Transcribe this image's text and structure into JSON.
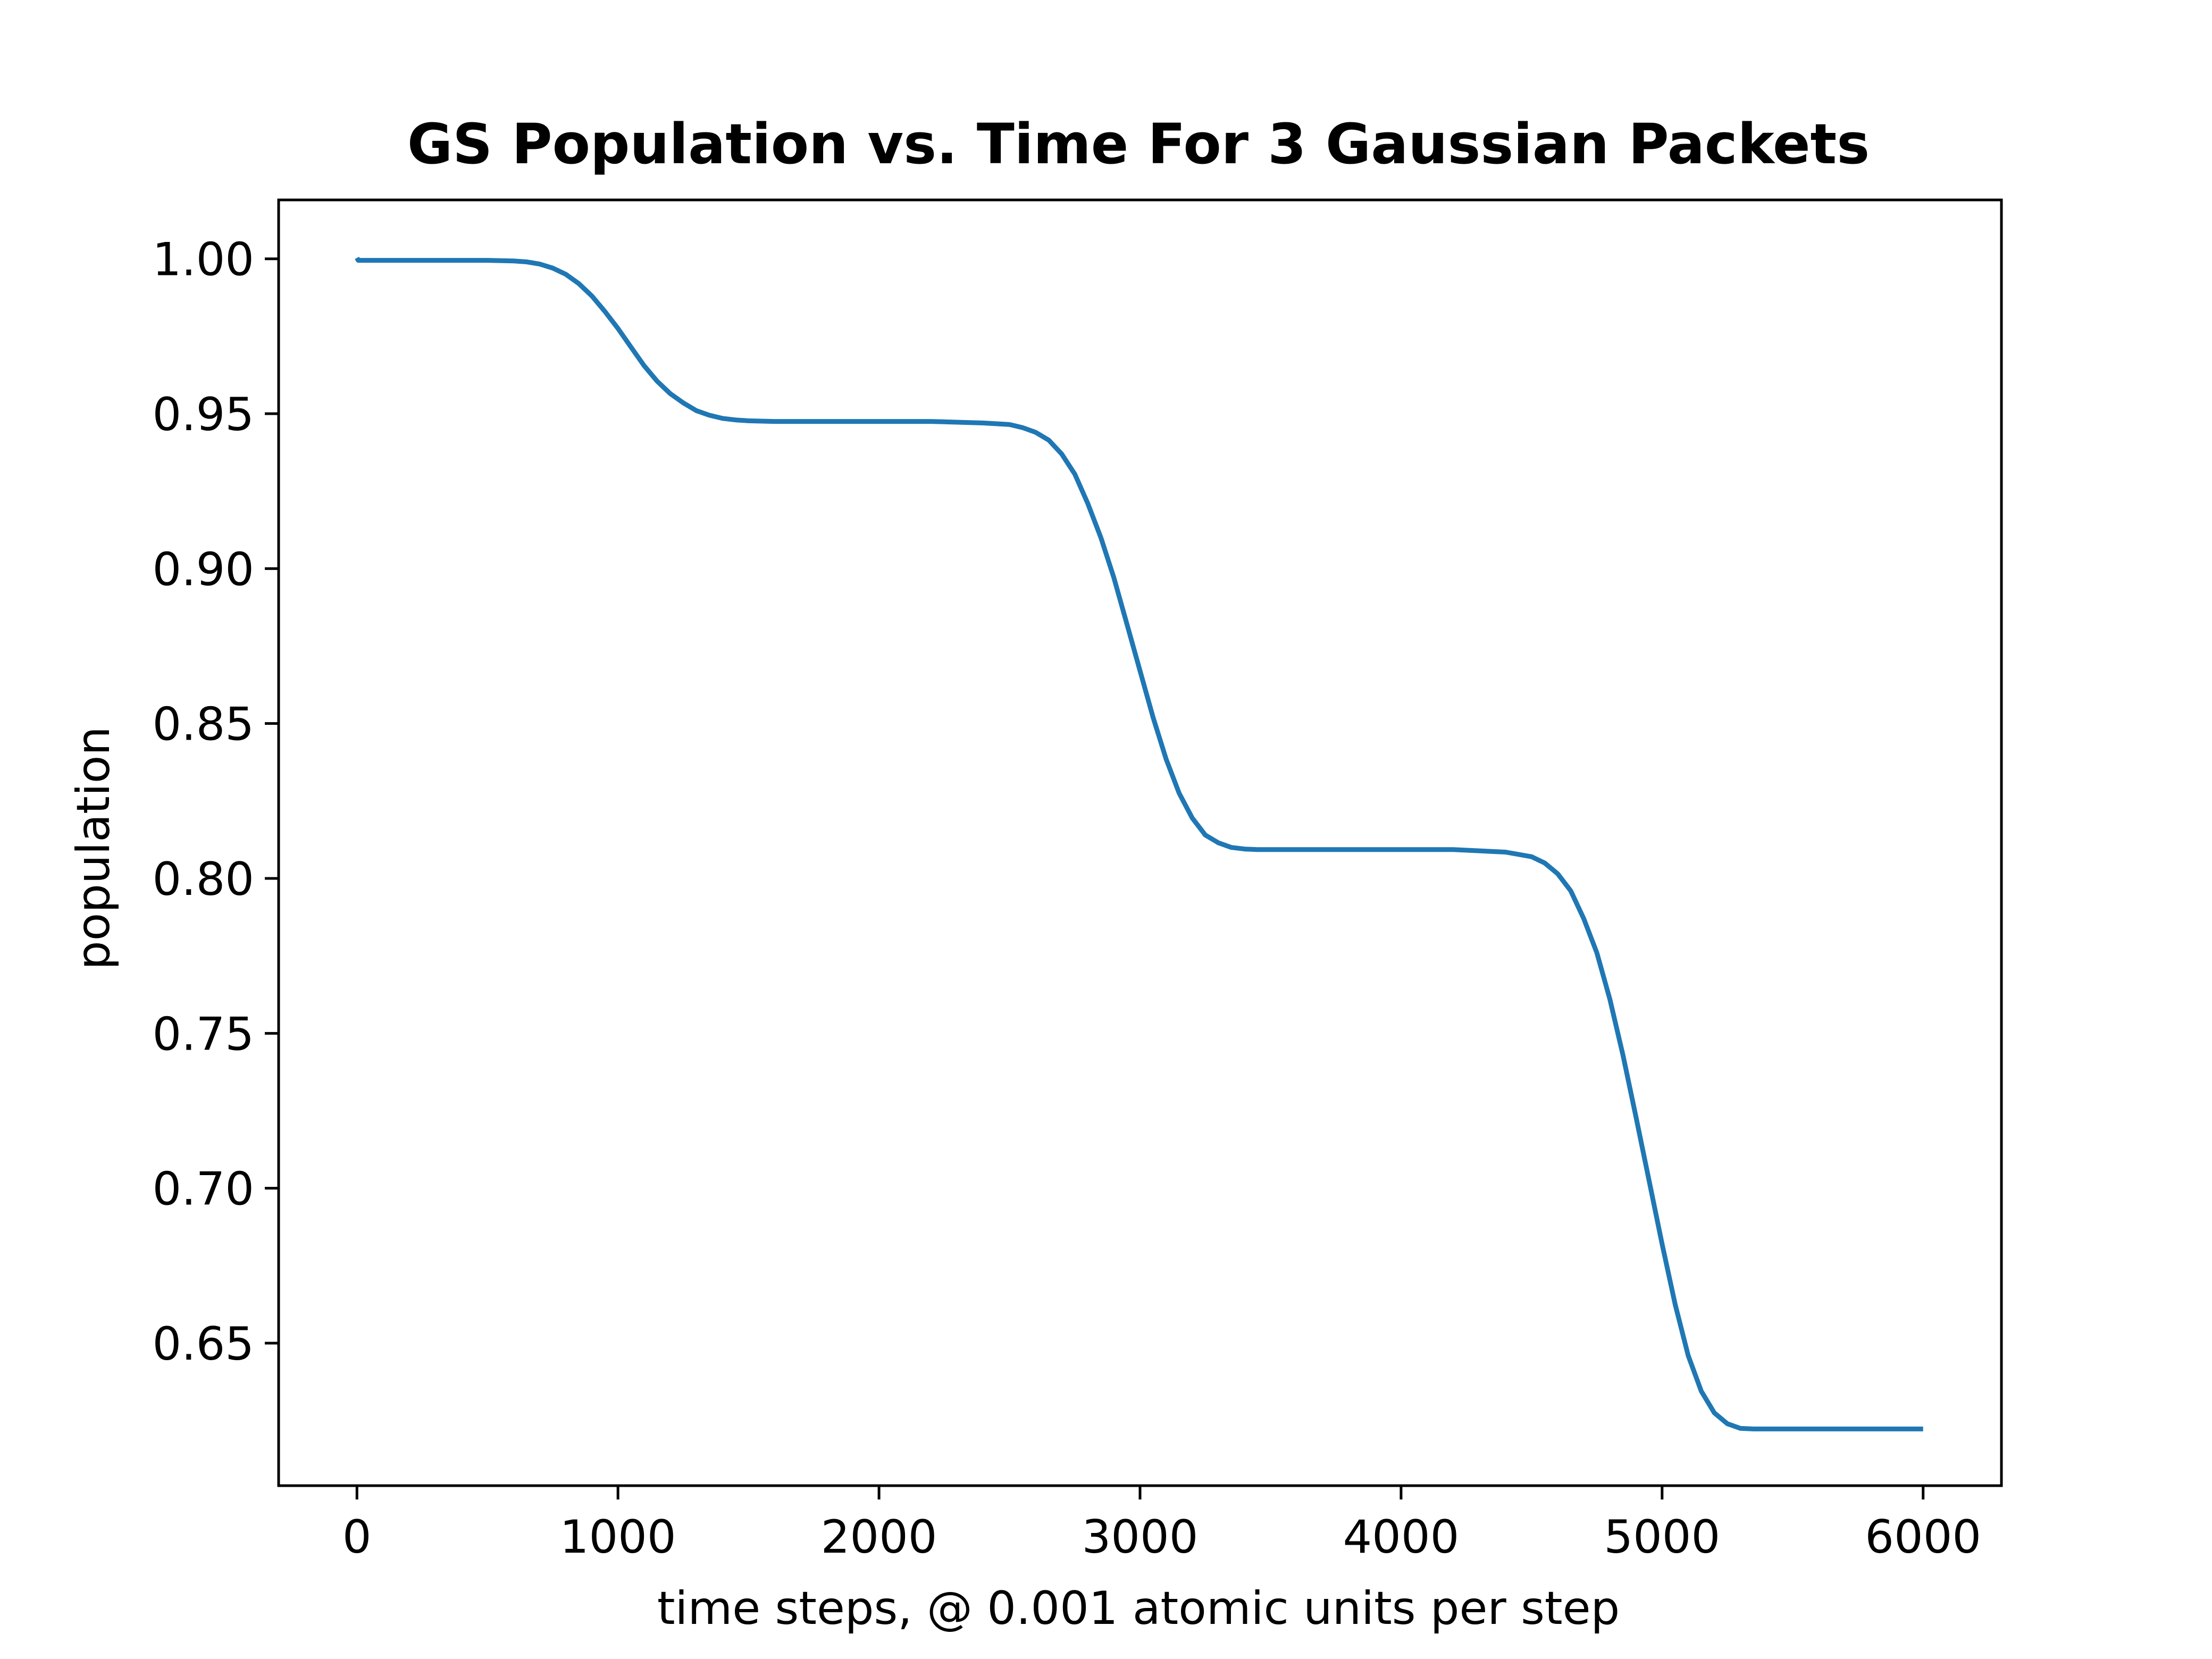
{
  "chart_data": {
    "type": "line",
    "title": "GS Population vs. Time For 3 Gaussian Packets",
    "xlabel": "time steps, @ 0.001 atomic units per step",
    "ylabel": "population",
    "xlim": [
      -300,
      6300
    ],
    "ylim": [
      0.604,
      1.019
    ],
    "xticks": [
      0,
      1000,
      2000,
      3000,
      4000,
      5000,
      6000
    ],
    "xtick_labels": [
      "0",
      "1000",
      "2000",
      "3000",
      "4000",
      "5000",
      "6000"
    ],
    "yticks": [
      0.65,
      0.7,
      0.75,
      0.8,
      0.85,
      0.9,
      0.95,
      1.0
    ],
    "ytick_labels": [
      "0.65",
      "0.70",
      "0.75",
      "0.80",
      "0.85",
      "0.90",
      "0.95",
      "1.00"
    ],
    "grid": false,
    "series": [
      {
        "color": "#1f77b4",
        "x": [
          0,
          5,
          10,
          100,
          200,
          300,
          400,
          500,
          600,
          650,
          700,
          750,
          800,
          850,
          900,
          950,
          1000,
          1050,
          1100,
          1150,
          1200,
          1250,
          1300,
          1350,
          1400,
          1450,
          1500,
          1600,
          1700,
          1800,
          2000,
          2200,
          2400,
          2500,
          2550,
          2600,
          2650,
          2700,
          2750,
          2800,
          2850,
          2900,
          2950,
          3000,
          3050,
          3100,
          3150,
          3200,
          3250,
          3300,
          3350,
          3400,
          3450,
          3500,
          3600,
          3700,
          3800,
          4000,
          4200,
          4400,
          4500,
          4550,
          4600,
          4650,
          4700,
          4750,
          4800,
          4850,
          4900,
          4950,
          5000,
          5050,
          5100,
          5150,
          5200,
          5250,
          5300,
          5350,
          5400,
          5450,
          5500,
          5600,
          5700,
          5800,
          6000
        ],
        "y": [
          1.0003,
          0.9995,
          0.9995,
          0.9995,
          0.9995,
          0.9995,
          0.9995,
          0.9995,
          0.9993,
          0.999,
          0.9983,
          0.997,
          0.995,
          0.992,
          0.988,
          0.983,
          0.9775,
          0.9715,
          0.9655,
          0.9605,
          0.9565,
          0.9535,
          0.951,
          0.9495,
          0.9485,
          0.948,
          0.9477,
          0.9475,
          0.9475,
          0.9475,
          0.9475,
          0.9475,
          0.947,
          0.9465,
          0.9455,
          0.944,
          0.9415,
          0.937,
          0.9305,
          0.921,
          0.91,
          0.897,
          0.882,
          0.867,
          0.852,
          0.8385,
          0.8275,
          0.8195,
          0.814,
          0.8115,
          0.81,
          0.8095,
          0.8093,
          0.8093,
          0.8093,
          0.8093,
          0.8093,
          0.8093,
          0.8093,
          0.8085,
          0.807,
          0.805,
          0.8015,
          0.796,
          0.787,
          0.776,
          0.761,
          0.743,
          0.723,
          0.7025,
          0.682,
          0.6625,
          0.646,
          0.6345,
          0.6275,
          0.624,
          0.6225,
          0.6223,
          0.6223,
          0.6223,
          0.6223,
          0.6223,
          0.6223,
          0.6223,
          0.6223
        ]
      }
    ]
  }
}
